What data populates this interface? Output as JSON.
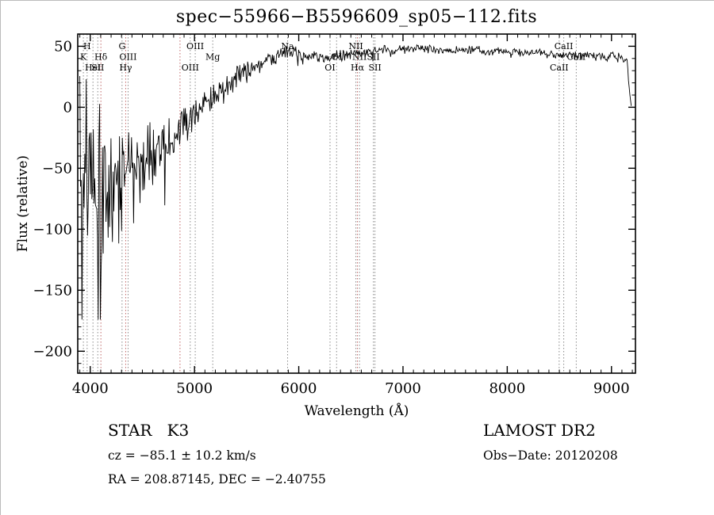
{
  "chart_data": {
    "type": "line",
    "title": "spec−55966−B5596609_sp05−112.fits",
    "xlabel": "Wavelength (Å)",
    "ylabel": "Flux (relative)",
    "xlim": [
      3880,
      9230
    ],
    "ylim": [
      -218,
      60
    ],
    "x_ticks": [
      4000,
      5000,
      6000,
      7000,
      8000,
      9000
    ],
    "x_minor_step": 100,
    "y_ticks": [
      50,
      0,
      -50,
      -100,
      -150,
      -200
    ],
    "y_minor_step": 10,
    "grid": false,
    "legend": "none",
    "line_color": "#000000",
    "marker_colors": {
      "default": "#8a8a8a",
      "balmer": "#c06868"
    },
    "spectral_lines": [
      {
        "label": "H",
        "wavelength": 3970,
        "row": 1,
        "color": "default"
      },
      {
        "label": "K",
        "wavelength": 3934,
        "row": 2,
        "color": "default"
      },
      {
        "label": "HeI",
        "wavelength": 4026,
        "row": 3,
        "color": "default"
      },
      {
        "label": "SII",
        "wavelength": 4072,
        "row": 3,
        "color": "default"
      },
      {
        "label": "Hδ",
        "wavelength": 4102,
        "row": 2,
        "color": "balmer"
      },
      {
        "label": "G",
        "wavelength": 4305,
        "row": 1,
        "color": "default"
      },
      {
        "label": "Hγ",
        "wavelength": 4340,
        "row": 3,
        "color": "balmer"
      },
      {
        "label": "OIII",
        "wavelength": 4363,
        "row": 2,
        "color": "default"
      },
      {
        "label": "",
        "wavelength": 4861,
        "row": 0,
        "color": "balmer"
      },
      {
        "label": "OIII",
        "wavelength": 5007,
        "row": 1,
        "color": "default"
      },
      {
        "label": "OIII",
        "wavelength": 4959,
        "row": 3,
        "color": "default"
      },
      {
        "label": "Mg",
        "wavelength": 5175,
        "row": 2,
        "color": "default"
      },
      {
        "label": "Na",
        "wavelength": 5893,
        "row": 1,
        "color": "default"
      },
      {
        "label": "OI",
        "wavelength": 6300,
        "row": 3,
        "color": "default"
      },
      {
        "label": "OI",
        "wavelength": 6363,
        "row": 2,
        "color": "default"
      },
      {
        "label": "NII",
        "wavelength": 6548,
        "row": 1,
        "color": "default"
      },
      {
        "label": "Hα",
        "wavelength": 6563,
        "row": 3,
        "color": "balmer"
      },
      {
        "label": "NII",
        "wavelength": 6583,
        "row": 2,
        "color": "default"
      },
      {
        "label": "SII",
        "wavelength": 6716,
        "row": 2,
        "color": "default"
      },
      {
        "label": "SII",
        "wavelength": 6731,
        "row": 3,
        "color": "default"
      },
      {
        "label": "CaII",
        "wavelength": 8498,
        "row": 3,
        "color": "default"
      },
      {
        "label": "CaII",
        "wavelength": 8542,
        "row": 1,
        "color": "default"
      },
      {
        "label": "CaII",
        "wavelength": 8662,
        "row": 2,
        "color": "default"
      }
    ],
    "spectrum_envelope": {
      "x": [
        3900,
        3930,
        3960,
        4000,
        4050,
        4100,
        4150,
        4200,
        4300,
        4400,
        4500,
        4600,
        4700,
        4800,
        4900,
        5000,
        5100,
        5200,
        5300,
        5400,
        5500,
        5600,
        5700,
        5800,
        5900,
        6000,
        6100,
        6200,
        6300,
        6400,
        6500,
        6600,
        6700,
        6800,
        6900,
        7000,
        7200,
        7400,
        7600,
        7800,
        8000,
        8200,
        8400,
        8600,
        8800,
        9000,
        9100,
        9150,
        9170,
        9190
      ],
      "mean": [
        -40,
        -60,
        -55,
        -65,
        -70,
        -72,
        -64,
        -58,
        -56,
        -50,
        -44,
        -38,
        -31,
        -24,
        -14,
        -5,
        3,
        10,
        17,
        24,
        30,
        35,
        39,
        43,
        46,
        44,
        43,
        42,
        41,
        43,
        44,
        45,
        46,
        47,
        47,
        48,
        48,
        47,
        47,
        46,
        45,
        45,
        44,
        43,
        43,
        42,
        41,
        38,
        15,
        0
      ],
      "noise": [
        85,
        95,
        90,
        88,
        85,
        90,
        78,
        72,
        62,
        52,
        44,
        38,
        32,
        27,
        23,
        19,
        16,
        14,
        12,
        11,
        10,
        9,
        8,
        7,
        7,
        6,
        6,
        6,
        6,
        6,
        5,
        5,
        5,
        5,
        4,
        4,
        4,
        4,
        4,
        4,
        4,
        4,
        4,
        4,
        4,
        4,
        4,
        3,
        3,
        2
      ]
    }
  },
  "footer": {
    "object_class": "STAR   K3",
    "survey": "LAMOST DR2",
    "cz": "cz = −85.1 ± 10.2 km/s",
    "obs_date": "Obs−Date: 20120208",
    "ra_dec": "RA = 208.87145, DEC = −2.40755"
  }
}
